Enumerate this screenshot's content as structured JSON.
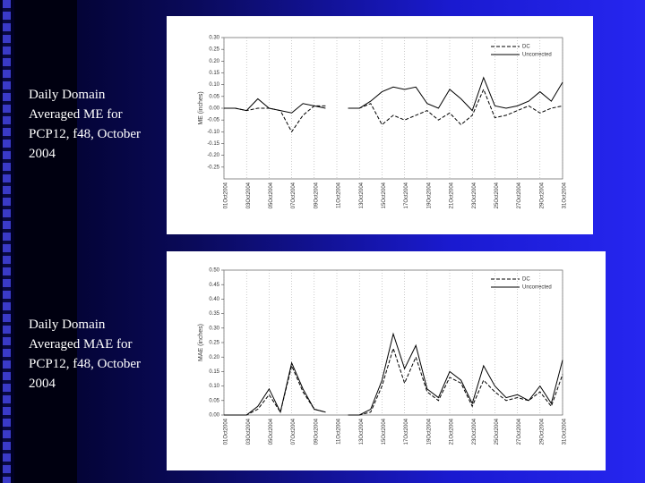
{
  "chart_data": [
    {
      "type": "line",
      "title": "Daily Domain Averaged ME for PCP12, f48, October 2004",
      "ylabel": "ME (inches)",
      "categories": [
        "01Oct2004",
        null,
        "03Oct2004",
        null,
        "05Oct2004",
        null,
        "07Oct2004",
        null,
        "09Oct2004",
        null,
        "11Oct2004",
        null,
        "13Oct2004",
        null,
        "15Oct2004",
        null,
        "17Oct2004",
        null,
        "19Oct2004",
        null,
        "21Oct2004",
        null,
        "23Oct2004",
        null,
        "25Oct2004",
        null,
        "27Oct2004",
        null,
        "29Oct2004",
        null,
        "31Oct2004"
      ],
      "series": [
        {
          "name": "DC",
          "color": "#000000",
          "style": "dashed",
          "values": [
            0,
            0,
            -0.01,
            0,
            0,
            -0.01,
            -0.1,
            -0.03,
            0.01,
            0.01,
            null,
            0,
            0,
            0.02,
            -0.07,
            -0.03,
            -0.05,
            -0.03,
            -0.01,
            -0.05,
            -0.02,
            -0.07,
            -0.03,
            0.08,
            -0.04,
            -0.03,
            -0.01,
            0.01,
            -0.02,
            0,
            0.01
          ]
        },
        {
          "name": "Uncorrected",
          "color": "#000000",
          "style": "solid",
          "values": [
            0,
            0,
            -0.01,
            0.04,
            0,
            -0.01,
            -0.02,
            0.02,
            0.01,
            0,
            null,
            0,
            0,
            0.03,
            0.07,
            0.09,
            0.08,
            0.09,
            0.02,
            0,
            0.08,
            0.04,
            -0.01,
            0.13,
            0.01,
            0,
            0.01,
            0.03,
            0.07,
            0.03,
            0.11
          ]
        }
      ],
      "ylim": [
        -0.3,
        0.3
      ],
      "yticks": [
        {
          "value": 0.3,
          "label": "0.30"
        },
        0.25,
        {
          "value": 0.2,
          "label": "0.20"
        },
        0.15,
        {
          "value": 0.1,
          "label": "0.10"
        },
        0.05,
        {
          "value": 0,
          "label": "0.00"
        },
        -0.05,
        {
          "value": -0.1,
          "label": "-0.10"
        },
        -0.15,
        {
          "value": -0.2,
          "label": "-0.20"
        },
        -0.25
      ],
      "grid": "x",
      "legend": "upper right"
    },
    {
      "type": "line",
      "title": "Daily Domain Averaged MAE for PCP12, f48, October 2004",
      "ylabel": "MAE (inches)",
      "categories": [
        "01Oct2004",
        null,
        "03Oct2004",
        null,
        "05Oct2004",
        null,
        "07Oct2004",
        null,
        "09Oct2004",
        null,
        "11Oct2004",
        null,
        "13Oct2004",
        null,
        "15Oct2004",
        null,
        "17Oct2004",
        null,
        "19Oct2004",
        null,
        "21Oct2004",
        null,
        "23Oct2004",
        null,
        "25Oct2004",
        null,
        "27Oct2004",
        null,
        "29Oct2004",
        null,
        "31Oct2004"
      ],
      "series": [
        {
          "name": "DC",
          "color": "#000000",
          "style": "dashed",
          "values": [
            0,
            0,
            0,
            0.02,
            0.07,
            0.01,
            0.17,
            0.08,
            0.02,
            0.01,
            null,
            0,
            0,
            0.01,
            0.1,
            0.23,
            0.11,
            0.2,
            0.08,
            0.05,
            0.13,
            0.11,
            0.03,
            0.12,
            0.08,
            0.05,
            0.06,
            0.05,
            0.08,
            0.03,
            0.14
          ]
        },
        {
          "name": "Uncorrected",
          "color": "#000000",
          "style": "solid",
          "values": [
            0,
            0,
            0,
            0.03,
            0.09,
            0.01,
            0.18,
            0.09,
            0.02,
            0.01,
            null,
            0,
            0,
            0.02,
            0.12,
            0.28,
            0.16,
            0.24,
            0.09,
            0.06,
            0.15,
            0.12,
            0.04,
            0.17,
            0.1,
            0.06,
            0.07,
            0.05,
            0.1,
            0.04,
            0.19
          ]
        }
      ],
      "ylim": [
        0,
        0.5
      ],
      "yticks": [
        {
          "value": 0.5,
          "label": "0.50"
        },
        0.45,
        {
          "value": 0.4,
          "label": "0.40"
        },
        0.35,
        {
          "value": 0.3,
          "label": "0.30"
        },
        0.25,
        {
          "value": 0.2,
          "label": "0.20"
        },
        0.15,
        {
          "value": 0.1,
          "label": "0.10"
        },
        0.05,
        {
          "value": 0,
          "label": "0.00"
        }
      ],
      "grid": "x",
      "legend": "upper right"
    }
  ]
}
